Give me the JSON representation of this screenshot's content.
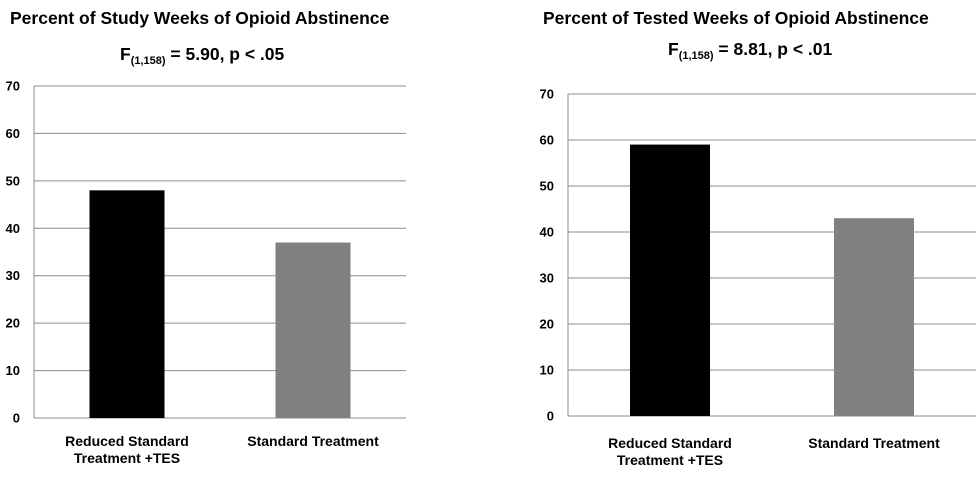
{
  "charts": [
    {
      "title": "Percent of Study Weeks of Opioid Abstinence",
      "stat": {
        "prefix": "F",
        "sub": "(1,158)",
        "rest": " = 5.90, p < .05"
      }
    },
    {
      "title": "Percent of Tested Weeks of Opioid Abstinence",
      "stat": {
        "prefix": "F",
        "sub": "(1,158)",
        "rest": " = 8.81, p < .01"
      }
    }
  ],
  "chart_data": [
    {
      "type": "bar",
      "title": "Percent of Study Weeks of Opioid Abstinence",
      "categories": [
        [
          "Reduced Standard",
          "Treatment +TES"
        ],
        [
          "Standard Treatment"
        ]
      ],
      "values": [
        48,
        37
      ],
      "colors": [
        "#000000",
        "#808080"
      ],
      "ylim": [
        0,
        70
      ],
      "yticks": [
        0,
        10,
        20,
        30,
        40,
        50,
        60,
        70
      ],
      "grid": true
    },
    {
      "type": "bar",
      "title": "Percent of Tested Weeks of Opioid Abstinence",
      "categories": [
        [
          "Reduced Standard",
          "Treatment +TES"
        ],
        [
          "Standard Treatment"
        ]
      ],
      "values": [
        59,
        43
      ],
      "colors": [
        "#000000",
        "#808080"
      ],
      "ylim": [
        0,
        70
      ],
      "yticks": [
        0,
        10,
        20,
        30,
        40,
        50,
        60,
        70
      ],
      "grid": true
    }
  ]
}
